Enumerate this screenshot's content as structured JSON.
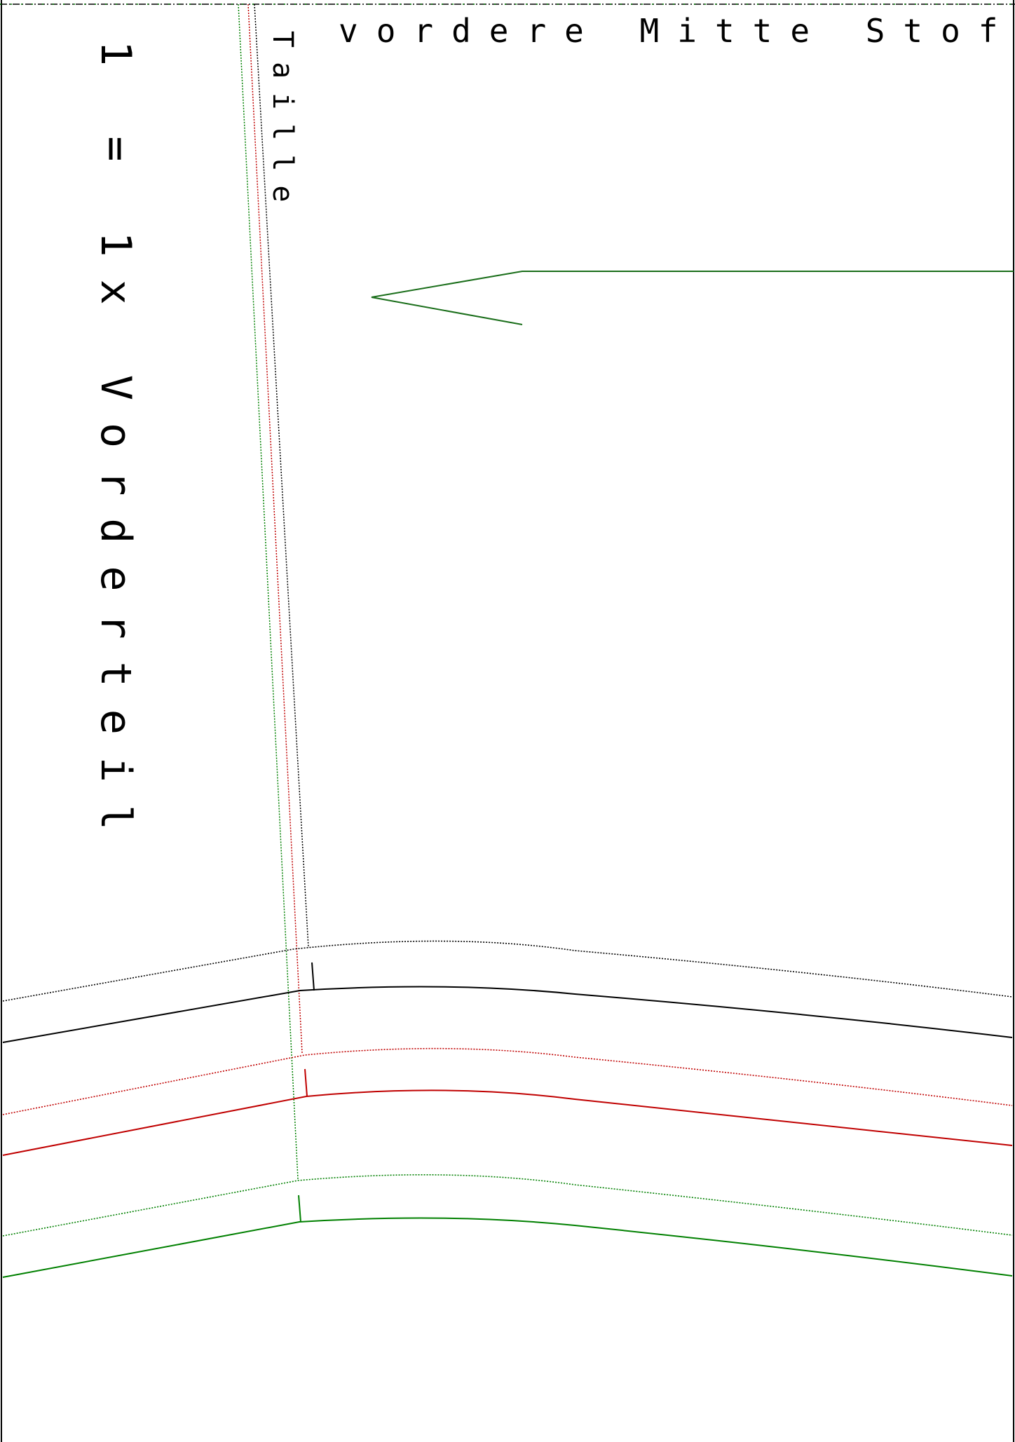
{
  "labels": {
    "fold": "vordere Mitte Stoffbru",
    "waist": "Taille",
    "piece": "1 = 1x Vorderteil"
  },
  "colors": {
    "black": "#000000",
    "red": "#c00000",
    "green": "#008000",
    "arrow": "#1a6e1a",
    "background": "#ffffff"
  }
}
